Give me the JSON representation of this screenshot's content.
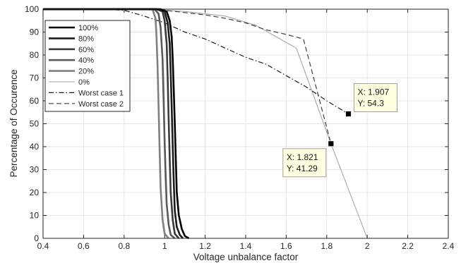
{
  "chart_data": {
    "type": "line",
    "title": "",
    "xlabel": "Voltage unbalance factor",
    "ylabel": "Percentage of Occurence",
    "xlim": [
      0.4,
      2.4
    ],
    "ylim": [
      0,
      100
    ],
    "xticks": [
      0.4,
      0.6,
      0.8,
      1,
      1.2,
      1.4,
      1.6,
      1.8,
      2,
      2.2,
      2.4
    ],
    "yticks": [
      0,
      10,
      20,
      30,
      40,
      50,
      60,
      70,
      80,
      90,
      100
    ],
    "xtick_labels": [
      "0.4",
      "0.6",
      "0.8",
      "1",
      "1.2",
      "1.4",
      "1.6",
      "1.8",
      "2",
      "2.2",
      "2.4"
    ],
    "ytick_labels": [
      "0",
      "10",
      "20",
      "30",
      "40",
      "50",
      "60",
      "70",
      "80",
      "90",
      "100"
    ],
    "grid": true,
    "legend_position": "top-left",
    "series": [
      {
        "name": "100%",
        "color": "#000000",
        "style": "solid",
        "width": 2.6,
        "x": [
          0.4,
          0.98,
          1.01,
          1.025,
          1.035,
          1.04,
          1.045,
          1.05,
          1.055,
          1.06,
          1.07,
          1.085,
          1.1,
          1.12
        ],
        "y": [
          100,
          100,
          99,
          95,
          88,
          78,
          65,
          50,
          35,
          20,
          10,
          4,
          1,
          0
        ]
      },
      {
        "name": "80%",
        "color": "#1c1c1c",
        "style": "solid",
        "width": 2.6,
        "x": [
          0.4,
          0.97,
          1.0,
          1.015,
          1.025,
          1.03,
          1.035,
          1.04,
          1.045,
          1.05,
          1.06,
          1.075,
          1.09
        ],
        "y": [
          100,
          100,
          99,
          94,
          85,
          72,
          57,
          40,
          25,
          12,
          5,
          1.5,
          0
        ]
      },
      {
        "name": "60%",
        "color": "#3a3a3a",
        "style": "solid",
        "width": 2.6,
        "x": [
          0.4,
          0.96,
          0.99,
          1.0,
          1.01,
          1.015,
          1.02,
          1.025,
          1.03,
          1.04,
          1.05,
          1.07
        ],
        "y": [
          100,
          100,
          99,
          95,
          85,
          70,
          52,
          35,
          20,
          8,
          2,
          0
        ]
      },
      {
        "name": "40%",
        "color": "#595959",
        "style": "solid",
        "width": 2.6,
        "x": [
          0.4,
          0.95,
          0.97,
          0.98,
          0.99,
          0.995,
          1.0,
          1.005,
          1.01,
          1.02,
          1.03,
          1.05
        ],
        "y": [
          100,
          100,
          98,
          92,
          78,
          60,
          42,
          28,
          15,
          6,
          1.5,
          0
        ]
      },
      {
        "name": "20%",
        "color": "#7f7f7f",
        "style": "solid",
        "width": 2.6,
        "x": [
          0.4,
          0.94,
          0.955,
          0.96,
          0.965,
          0.97,
          0.975,
          0.98,
          0.99,
          1.0,
          1.02
        ],
        "y": [
          100,
          100,
          96,
          88,
          75,
          58,
          40,
          22,
          8,
          2,
          0
        ]
      },
      {
        "name": "0%",
        "color": "#a6a6a6",
        "style": "solid",
        "width": 1.1,
        "x": [
          0.4,
          0.7,
          1.0,
          1.1,
          1.3,
          1.45,
          1.55,
          1.65,
          1.821,
          2.0
        ],
        "y": [
          100,
          100,
          99.5,
          99,
          97,
          93,
          88,
          83,
          41.29,
          0
        ]
      },
      {
        "name": "Worst case 1",
        "color": "#1a1a1a",
        "style": "dashdot",
        "width": 1.2,
        "x": [
          0.4,
          0.7,
          0.8,
          0.9,
          1.0,
          1.1,
          1.2,
          1.3,
          1.4,
          1.5,
          1.6,
          1.7,
          1.8,
          1.907
        ],
        "y": [
          100,
          100,
          99.5,
          97,
          94,
          90,
          87,
          83,
          79,
          76,
          71,
          66,
          60,
          54.3
        ]
      },
      {
        "name": "Worst case 2",
        "color": "#404040",
        "style": "dashed",
        "width": 1.2,
        "x": [
          0.4,
          0.9,
          1.0,
          1.1,
          1.2,
          1.3,
          1.4,
          1.5,
          1.6,
          1.685,
          1.821
        ],
        "y": [
          100,
          100,
          99.5,
          98.5,
          97.5,
          96,
          94,
          91,
          89,
          87,
          41.29
        ]
      }
    ],
    "datatips": [
      {
        "x_label": "X: 1.907",
        "y_label": "Y: 54.3",
        "x": 1.907,
        "y": 54.3,
        "label_side": "upper-right"
      },
      {
        "x_label": "X: 1.821",
        "y_label": "Y: 41.29",
        "x": 1.821,
        "y": 41.29,
        "label_side": "lower-left"
      }
    ],
    "colors": {
      "grid": "#e6e6e6",
      "axis": "#262626",
      "datatip_bg": "#ffffe1",
      "datatip_border": "#a0a0a0"
    }
  }
}
